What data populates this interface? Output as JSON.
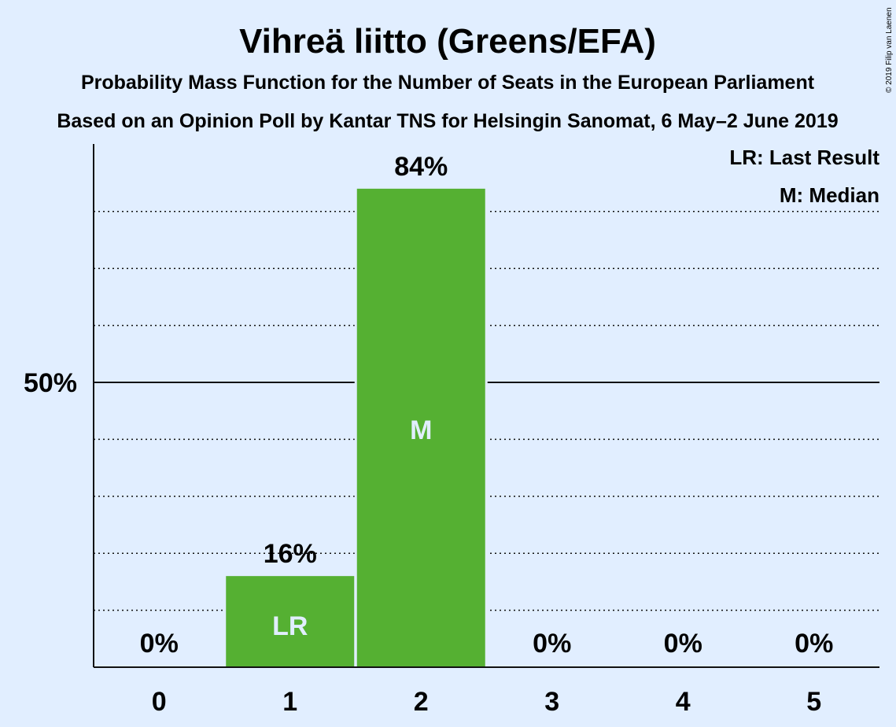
{
  "chart_data": {
    "type": "bar",
    "title": "Vihreä liitto (Greens/EFA)",
    "subtitle": "Probability Mass Function for the Number of Seats in the European Parliament",
    "subtitle2": "Based on an Opinion Poll by Kantar TNS for Helsingin Sanomat, 6 May–2 June 2019",
    "copyright": "© 2019 Filip van Laenen",
    "categories": [
      "0",
      "1",
      "2",
      "3",
      "4",
      "5"
    ],
    "values": [
      0,
      16,
      84,
      0,
      0,
      0
    ],
    "value_labels": [
      "0%",
      "16%",
      "84%",
      "0%",
      "0%",
      "0%"
    ],
    "bar_markers": [
      "",
      "LR",
      "M",
      "",
      "",
      ""
    ],
    "ylim": [
      0,
      92
    ],
    "y_tick_label": "50%",
    "y_tick_value": 50,
    "dotted_gridlines": [
      10,
      20,
      30,
      40,
      60,
      70,
      80
    ],
    "legend": [
      "LR: Last Result",
      "M: Median"
    ],
    "legend_position": "top-right",
    "colors": {
      "bar": "#55b032",
      "background": "#e1eeff",
      "text": "#111111"
    }
  }
}
